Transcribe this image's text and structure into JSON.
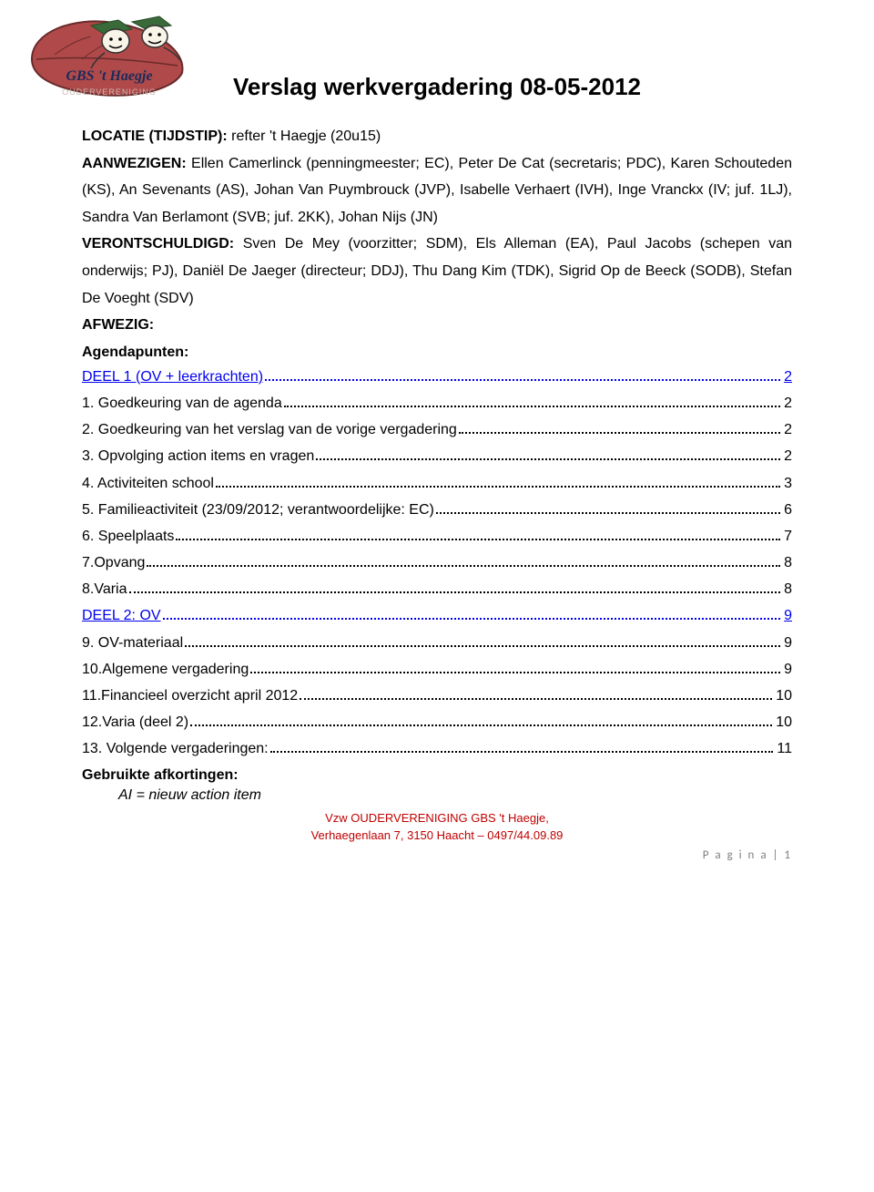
{
  "logo": {
    "school_name": "GBS 't Haegje",
    "subtitle": "OUDERVERENIGING",
    "leaf_fill": "#b04a4a",
    "leaf_stroke": "#6a2a2a",
    "hat_fill": "#3a6a3a",
    "face_fill": "#f8f4e8"
  },
  "title": "Verslag werkvergadering 08-05-2012",
  "meta": {
    "locatie_label": "LOCATIE (TIJDSTIP):",
    "locatie_value": "refter 't Haegje (20u15)",
    "aanwezigen_label": "AANWEZIGEN:",
    "aanwezigen_value": "Ellen Camerlinck (penningmeester; EC), Peter De Cat (secretaris; PDC), Karen Schouteden (KS), An Sevenants (AS), Johan Van Puymbrouck (JVP), Isabelle Verhaert (IVH), Inge Vranckx (IV; juf. 1LJ), Sandra Van Berlamont (SVB; juf. 2KK), Johan Nijs (JN)",
    "verontschuldigd_label": "VERONTSCHULDIGD:",
    "verontschuldigd_value": "Sven De Mey (voorzitter; SDM), Els Alleman (EA), Paul Jacobs (schepen van onderwijs; PJ), Daniël De Jaeger (directeur; DDJ), Thu Dang Kim (TDK), Sigrid Op de Beeck (SODB), Stefan De Voeght (SDV)",
    "afwezig_label": "AFWEZIG:"
  },
  "agenda_heading": "Agendapunten:",
  "toc": [
    {
      "label": " DEEL 1 (OV + leerkrachten)",
      "page": "2",
      "link": true
    },
    {
      "label": " 1. Goedkeuring van de agenda",
      "page": "2",
      "link": false
    },
    {
      "label": " 2. Goedkeuring van het verslag van de vorige vergadering",
      "page": "2",
      "link": false
    },
    {
      "label": " 3. Opvolging action items en vragen",
      "page": "2",
      "link": false
    },
    {
      "label": " 4. Activiteiten school",
      "page": "3",
      "link": false
    },
    {
      "label": " 5. Familieactiviteit (23/09/2012; verantwoordelijke: EC)",
      "page": "6",
      "link": false
    },
    {
      "label": " 6. Speelplaats",
      "page": "7",
      "link": false
    },
    {
      "label": " 7.Opvang",
      "page": "8",
      "link": false
    },
    {
      "label": " 8.Varia ",
      "page": "8",
      "link": false
    },
    {
      "label": " DEEL 2: OV",
      "page": "9",
      "link": true
    },
    {
      "label": " 9. OV-materiaal",
      "page": "9",
      "link": false
    },
    {
      "label": " 10.Algemene vergadering",
      "page": "9",
      "link": false
    },
    {
      "label": " 11.Financieel overzicht april 2012",
      "page": "10",
      "link": false
    },
    {
      "label": " 12.Varia (deel 2)",
      "page": "10",
      "link": false
    },
    {
      "label": " 13. Volgende vergaderingen:",
      "page": "11",
      "link": false
    }
  ],
  "abbrev_heading": "Gebruikte afkortingen:",
  "abbrev_item": "AI = nieuw action item",
  "footer": {
    "line1": "Vzw OUDERVERENIGING GBS 't Haegje,",
    "line2": "Verhaegenlaan 7, 3150 Haacht – 0497/44.09.89"
  },
  "page_number": "P a g i n a  | 1",
  "colors": {
    "link": "#0000ee",
    "footer": "#c00000",
    "pagenum": "#7f7f7f"
  }
}
